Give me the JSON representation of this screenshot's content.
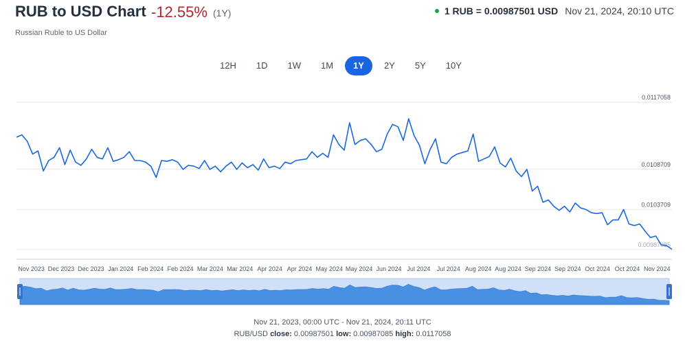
{
  "header": {
    "title": "RUB to USD Chart",
    "change": "-12.55%",
    "period": "(1Y)",
    "rate": "1 RUB = 0.00987501 USD",
    "timestamp": "Nov 21, 2024, 20:10 UTC",
    "subtitle": "Russian Ruble to US Dollar"
  },
  "tabs": [
    {
      "label": "12H",
      "active": false
    },
    {
      "label": "1D",
      "active": false
    },
    {
      "label": "1W",
      "active": false
    },
    {
      "label": "1M",
      "active": false
    },
    {
      "label": "1Y",
      "active": true
    },
    {
      "label": "2Y",
      "active": false
    },
    {
      "label": "5Y",
      "active": false
    },
    {
      "label": "10Y",
      "active": false
    }
  ],
  "colors": {
    "line": "#1a66e0",
    "navigator_fill": "#4a90e2",
    "navigator_bg": "#cfe0f8",
    "grid": "#e6e6e6",
    "negative": "#b3262e",
    "live_dot": "#16a34a"
  },
  "footer": {
    "range": "Nov 21, 2023, 00:00 UTC - Nov 21, 2024, 20:11 UTC",
    "pair": "RUB/USD",
    "close_label": "close:",
    "close_value": "0.00987501",
    "low_label": "low:",
    "low_value": "0.00987085",
    "high_label": "high:",
    "high_value": "0.0117058"
  },
  "chart_data": {
    "type": "line",
    "x_tick_labels": [
      "Nov 2023",
      "Dec 2023",
      "Dec 2023",
      "Jan 2024",
      "Feb 2024",
      "Feb 2024",
      "Mar 2024",
      "Mar 2024",
      "Apr 2024",
      "Apr 2024",
      "May 2024",
      "May 2024",
      "Jun 2024",
      "Jul 2024",
      "Jul 2024",
      "Aug 2024",
      "Aug 2024",
      "Sep 2024",
      "Sep 2024",
      "Oct 2024",
      "Oct 2024",
      "Nov 2024"
    ],
    "y_tick_labels": [
      "0.0117058",
      "0.0108709",
      "0.0103709",
      "0.00987085"
    ],
    "y_ticks": [
      0.0117058,
      0.0108709,
      0.0103709,
      0.00987085
    ],
    "ylim": [
      0.00975,
      0.0118
    ],
    "grid": true,
    "x_range_days": [
      0,
      366
    ],
    "series": [
      {
        "x": [
          0,
          3,
          6,
          9,
          12,
          15,
          18,
          21,
          24,
          27,
          30,
          33,
          36,
          39,
          42,
          45,
          48,
          51,
          54,
          57,
          60,
          63,
          66,
          69,
          72,
          75,
          78,
          81,
          84,
          87,
          90,
          93,
          96,
          99,
          102,
          105,
          108,
          111,
          114,
          117,
          120,
          123,
          126,
          129,
          132,
          135,
          138,
          141,
          144,
          147,
          150,
          153,
          156,
          159,
          162,
          165,
          168,
          171,
          174,
          177,
          180,
          183,
          186,
          189,
          192,
          195,
          198,
          201,
          204,
          207,
          210,
          213,
          216,
          219,
          222,
          225,
          228,
          231,
          234,
          237,
          240,
          243,
          246,
          249,
          252,
          255,
          258,
          261,
          264,
          267,
          270,
          273,
          276,
          279,
          282,
          285,
          288,
          291,
          294,
          297,
          300,
          303,
          306,
          309,
          312,
          315,
          318,
          321,
          324,
          327,
          330,
          333,
          336,
          339,
          342,
          345,
          348,
          351,
          354,
          357,
          360,
          363,
          366
        ],
        "y": [
          0.01127,
          0.0113,
          0.01122,
          0.01106,
          0.0111,
          0.01085,
          0.01098,
          0.01102,
          0.01114,
          0.01093,
          0.01111,
          0.01096,
          0.01092,
          0.011,
          0.01112,
          0.01102,
          0.011,
          0.01114,
          0.01097,
          0.01099,
          0.01102,
          0.01109,
          0.01098,
          0.01098,
          0.01096,
          0.01091,
          0.01077,
          0.01098,
          0.01097,
          0.01099,
          0.01096,
          0.01087,
          0.01092,
          0.01091,
          0.01088,
          0.01098,
          0.01087,
          0.01091,
          0.01084,
          0.01091,
          0.01096,
          0.01087,
          0.01095,
          0.01089,
          0.01093,
          0.01086,
          0.011,
          0.01089,
          0.01091,
          0.01088,
          0.01096,
          0.01094,
          0.01098,
          0.01099,
          0.011,
          0.01109,
          0.01102,
          0.01107,
          0.01102,
          0.0113,
          0.01118,
          0.01111,
          0.01145,
          0.01118,
          0.01123,
          0.01125,
          0.01118,
          0.01109,
          0.01112,
          0.01131,
          0.01143,
          0.0114,
          0.01123,
          0.0115,
          0.01129,
          0.01117,
          0.01094,
          0.01112,
          0.01125,
          0.01096,
          0.01094,
          0.01102,
          0.01106,
          0.01108,
          0.0111,
          0.01131,
          0.01097,
          0.011,
          0.01103,
          0.01115,
          0.01095,
          0.0109,
          0.01101,
          0.01085,
          0.01078,
          0.01087,
          0.0106,
          0.01066,
          0.01046,
          0.01049,
          0.01041,
          0.01036,
          0.01041,
          0.01034,
          0.01045,
          0.01039,
          0.01037,
          0.01033,
          0.01032,
          0.01033,
          0.01018,
          0.01024,
          0.01024,
          0.01037,
          0.01019,
          0.01017,
          0.01019,
          0.0101,
          0.01002,
          0.01004,
          0.00993,
          0.00992,
          0.00987501
        ]
      }
    ],
    "navigator": {
      "visible": true
    }
  }
}
